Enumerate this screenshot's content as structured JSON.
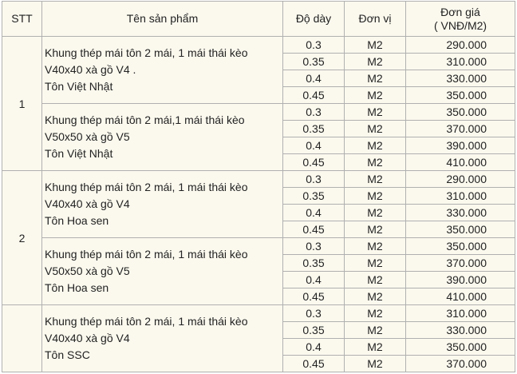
{
  "headers": {
    "stt": "STT",
    "product": "Tên sản phẩm",
    "thickness": "Độ dày",
    "unit": "Đơn vị",
    "price_line1": "Đơn giá",
    "price_line2": "( VNĐ/M2)"
  },
  "groups": [
    {
      "stt": "1",
      "products": [
        {
          "lines": [
            "Khung thép mái tôn 2 mái, 1 mái thái kèo",
            "V40x40 xà gồ V4 .",
            "Tôn Việt Nhật"
          ],
          "rows": [
            {
              "thickness": "0.3",
              "unit": "M2",
              "price": "290.000"
            },
            {
              "thickness": "0.35",
              "unit": "M2",
              "price": "310.000"
            },
            {
              "thickness": "0.4",
              "unit": "M2",
              "price": "330.000"
            },
            {
              "thickness": "0.45",
              "unit": "M2",
              "price": "350.000"
            }
          ]
        },
        {
          "lines": [
            "Khung thép mái tôn 2 mái,1 mái thái kèo",
            "V50x50 xà gồ V5",
            "Tôn Việt Nhật"
          ],
          "rows": [
            {
              "thickness": "0.3",
              "unit": "M2",
              "price": "350.000"
            },
            {
              "thickness": "0.35",
              "unit": "M2",
              "price": "370.000"
            },
            {
              "thickness": "0.4",
              "unit": "M2",
              "price": "390.000"
            },
            {
              "thickness": "0.45",
              "unit": "M2",
              "price": "410.000"
            }
          ]
        }
      ]
    },
    {
      "stt": "2",
      "products": [
        {
          "lines": [
            "Khung thép mái tôn 2 mái, 1 mái thái kèo",
            "V40x40 xà gồ V4",
            "Tôn Hoa sen"
          ],
          "rows": [
            {
              "thickness": "0.3",
              "unit": "M2",
              "price": "290.000"
            },
            {
              "thickness": "0.35",
              "unit": "M2",
              "price": "310.000"
            },
            {
              "thickness": "0.4",
              "unit": "M2",
              "price": "330.000"
            },
            {
              "thickness": "0.45",
              "unit": "M2",
              "price": "350.000"
            }
          ]
        },
        {
          "lines": [
            "Khung thép mái tôn 2 mái, 1 mái thái kèo",
            "V50x50 xà gồ V5",
            "Tôn Hoa sen"
          ],
          "rows": [
            {
              "thickness": "0.3",
              "unit": "M2",
              "price": "350.000"
            },
            {
              "thickness": "0.35",
              "unit": "M2",
              "price": "370.000"
            },
            {
              "thickness": "0.4",
              "unit": "M2",
              "price": "390.000"
            },
            {
              "thickness": "0.45",
              "unit": "M2",
              "price": "410.000"
            }
          ]
        }
      ]
    },
    {
      "stt": "",
      "products": [
        {
          "lines": [
            "Khung thép mái tôn 2 mái, 1 mái thái kèo",
            "V40x40 xà gồ V4",
            "Tôn SSC"
          ],
          "rows": [
            {
              "thickness": "0.3",
              "unit": "M2",
              "price": "310.000"
            },
            {
              "thickness": "0.35",
              "unit": "M2",
              "price": "330.000"
            },
            {
              "thickness": "0.4",
              "unit": "M2",
              "price": "350.000"
            },
            {
              "thickness": "0.45",
              "unit": "M2",
              "price": "370.000"
            }
          ]
        }
      ]
    }
  ]
}
